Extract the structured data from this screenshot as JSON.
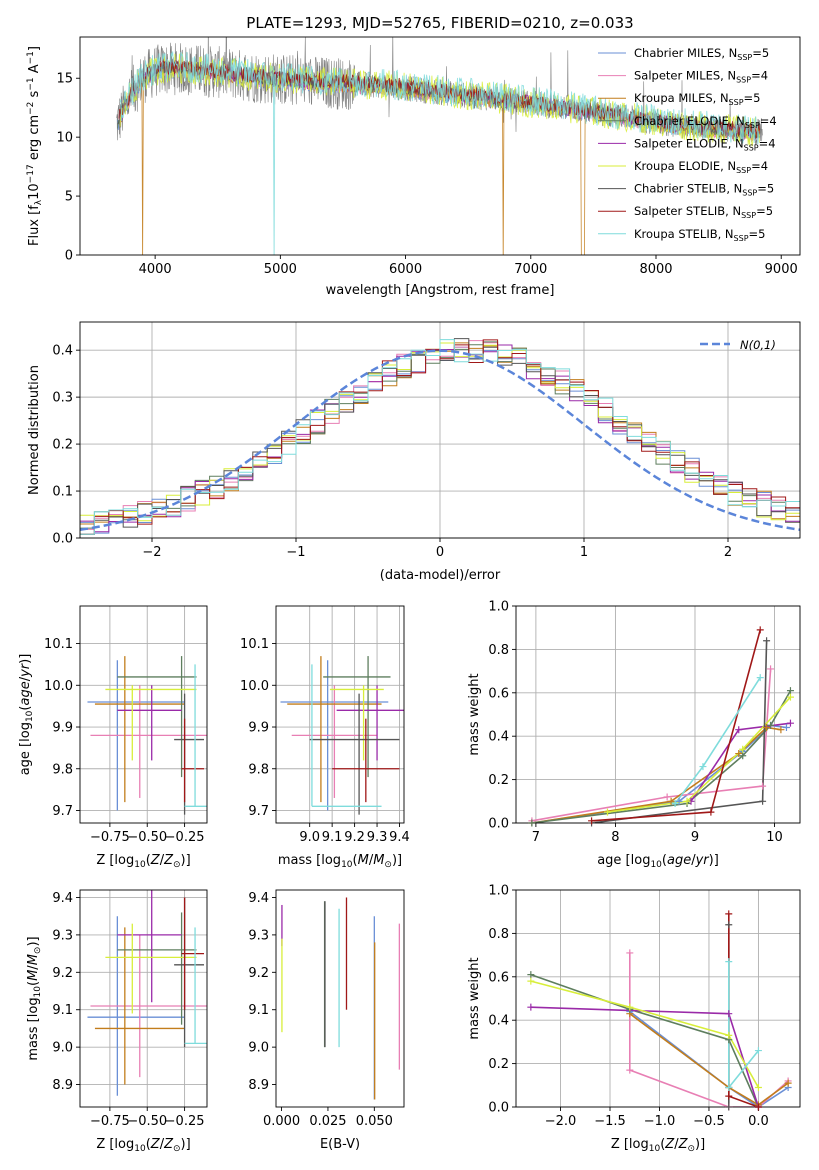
{
  "chart_data": [
    {
      "id": "spectrum",
      "type": "line",
      "title": "PLATE=1293, MJD=52765, FIBERID=0210, z=0.033",
      "xlabel": "wavelength [Angstrom, rest frame]",
      "ylabel": "Flux [f_λ10^-17 erg cm^-2 s^-1 A^-1]",
      "xlim": [
        3400,
        9150
      ],
      "ylim": [
        0,
        18.5
      ],
      "xticks": [
        4000,
        5000,
        6000,
        7000,
        8000,
        9000
      ],
      "yticks": [
        0,
        5,
        10,
        15
      ],
      "grid": false,
      "legend_position": "top-right",
      "data_range": [
        3690,
        8850
      ],
      "continuum": {
        "x": [
          3690,
          3800,
          3900,
          4000,
          4100,
          4200,
          4400,
          4600,
          4800,
          5000,
          5400,
          5800,
          6200,
          6600,
          7000,
          7400,
          7800,
          8200,
          8600,
          8850
        ],
        "y": [
          11.0,
          13.5,
          15.0,
          15.6,
          15.8,
          15.8,
          15.6,
          15.4,
          15.1,
          14.9,
          14.6,
          14.4,
          13.9,
          13.4,
          12.9,
          12.3,
          11.6,
          11.0,
          10.6,
          10.4
        ]
      },
      "series": [
        {
          "name": "Chabrier MILES, N_SSP=5",
          "color": "#6a8fd6"
        },
        {
          "name": "Salpeter MILES, N_SSP=4",
          "color": "#e87fb4"
        },
        {
          "name": "Kroupa MILES, N_SSP=5",
          "color": "#c27d1c"
        },
        {
          "name": "Chabrier ELODIE, N_SSP=4",
          "color": "#5e7e5e"
        },
        {
          "name": "Salpeter ELODIE, N_SSP=4",
          "color": "#9a2aa8"
        },
        {
          "name": "Kroupa ELODIE, N_SSP=4",
          "color": "#d8ee3a"
        },
        {
          "name": "Chabrier STELIB, N_SSP=5",
          "color": "#555555"
        },
        {
          "name": "Salpeter STELIB, N_SSP=5",
          "color": "#a01818"
        },
        {
          "name": "Kroupa STELIB, N_SSP=5",
          "color": "#7fdcdc"
        }
      ],
      "legend": [
        {
          "model": "Chabrier MILES, N",
          "sub": "SSP",
          "n": "=5",
          "color": "#6a8fd6"
        },
        {
          "model": "Salpeter MILES, N",
          "sub": "SSP",
          "n": "=4",
          "color": "#e87fb4"
        },
        {
          "model": "Kroupa MILES, N",
          "sub": "SSP",
          "n": "=5",
          "color": "#c27d1c"
        },
        {
          "model": "Chabrier ELODIE, N",
          "sub": "SSP",
          "n": "=4",
          "color": "#5e7e5e"
        },
        {
          "model": "Salpeter ELODIE, N",
          "sub": "SSP",
          "n": "=4",
          "color": "#9a2aa8"
        },
        {
          "model": "Kroupa ELODIE, N",
          "sub": "SSP",
          "n": "=4",
          "color": "#d8ee3a"
        },
        {
          "model": "Chabrier STELIB, N",
          "sub": "SSP",
          "n": "=5",
          "color": "#555555"
        },
        {
          "model": "Salpeter STELIB, N",
          "sub": "SSP",
          "n": "=5",
          "color": "#a01818"
        },
        {
          "model": "Kroupa STELIB, N",
          "sub": "SSP",
          "n": "=5",
          "color": "#7fdcdc"
        }
      ]
    },
    {
      "id": "residuals",
      "type": "histogram",
      "xlabel": "(data-model)/error",
      "ylabel": "Normed distribution",
      "xlim": [
        -2.5,
        2.5
      ],
      "ylim": [
        0,
        0.46
      ],
      "xticks": [
        -2,
        -1,
        0,
        1,
        2
      ],
      "yticks": [
        0.0,
        0.1,
        0.2,
        0.3,
        0.4
      ],
      "grid": true,
      "legend_position": "top-right",
      "reference": {
        "name": "N(0,1)",
        "mean": 0,
        "sigma": 1,
        "color": "#5b85d9"
      },
      "bin_width": 0.1,
      "series_colors": [
        "#6a8fd6",
        "#e87fb4",
        "#c27d1c",
        "#5e7e5e",
        "#9a2aa8",
        "#d8ee3a",
        "#555555",
        "#a01818",
        "#7fdcdc"
      ]
    },
    {
      "id": "age-vs-Z",
      "type": "errorbar",
      "xlabel": "Z [log10(Z/Z⊙)]",
      "ylabel": "age  [log10(age/yr)]",
      "xlim": [
        -0.95,
        -0.1
      ],
      "ylim": [
        9.67,
        10.19
      ],
      "xticks": [
        -0.75,
        -0.5,
        -0.25
      ],
      "xtick_labels": [
        "−0.75",
        "−0.50",
        "−0.25"
      ],
      "yticks": [
        9.7,
        9.8,
        9.9,
        10.0,
        10.1
      ],
      "grid": true,
      "points": [
        {
          "color": "#6a8fd6",
          "x": [
            -0.9,
            -0.25,
            -0.7
          ],
          "y": [
            9.7,
            10.06,
            9.96
          ]
        },
        {
          "color": "#e87fb4",
          "x": [
            -0.88,
            -0.1,
            -0.55
          ],
          "y": [
            9.73,
            10.0,
            9.88
          ]
        },
        {
          "color": "#c27d1c",
          "x": [
            -0.85,
            -0.25,
            -0.65
          ],
          "y": [
            9.72,
            10.07,
            9.955
          ]
        },
        {
          "color": "#5e7e5e",
          "x": [
            -0.7,
            -0.17,
            -0.27
          ],
          "y": [
            9.78,
            10.07,
            10.02
          ]
        },
        {
          "color": "#9a2aa8",
          "x": [
            -0.7,
            -0.27,
            -0.47
          ],
          "y": [
            9.82,
            10.0,
            9.94
          ]
        },
        {
          "color": "#d8ee3a",
          "x": [
            -0.78,
            -0.17,
            -0.6
          ],
          "y": [
            9.82,
            10.0,
            9.99
          ]
        },
        {
          "color": "#555555",
          "x": [
            -0.32,
            -0.12,
            -0.25
          ],
          "y": [
            9.69,
            9.98,
            9.87
          ]
        },
        {
          "color": "#a01818",
          "x": [
            -0.27,
            -0.12,
            -0.25
          ],
          "y": [
            9.72,
            9.92,
            9.8
          ]
        },
        {
          "color": "#7fdcdc",
          "x": [
            -0.25,
            -0.1,
            -0.18
          ],
          "y": [
            9.71,
            10.05,
            9.71
          ]
        }
      ]
    },
    {
      "id": "age-vs-mass",
      "type": "errorbar",
      "xlabel": "mass [log10(M/M⊙)]",
      "ylabel": "",
      "xlim": [
        8.85,
        9.42
      ],
      "ylim": [
        9.67,
        10.19
      ],
      "xticks": [
        9.0,
        9.1,
        9.2,
        9.3,
        9.4
      ],
      "yticks": [
        9.7,
        9.8,
        9.9,
        10.0,
        10.1
      ],
      "grid": true,
      "points": [
        {
          "color": "#6a8fd6",
          "x": [
            8.87,
            9.35,
            9.08
          ],
          "y": [
            9.7,
            10.06,
            9.96
          ]
        },
        {
          "color": "#e87fb4",
          "x": [
            8.92,
            9.3,
            9.11
          ],
          "y": [
            9.73,
            10.0,
            9.88
          ]
        },
        {
          "color": "#c27d1c",
          "x": [
            8.9,
            9.32,
            9.05
          ],
          "y": [
            9.72,
            10.07,
            9.955
          ]
        },
        {
          "color": "#5e7e5e",
          "x": [
            9.06,
            9.36,
            9.26
          ],
          "y": [
            9.78,
            10.07,
            10.02
          ]
        },
        {
          "color": "#9a2aa8",
          "x": [
            9.12,
            9.42,
            9.3
          ],
          "y": [
            9.82,
            10.0,
            9.94
          ]
        },
        {
          "color": "#d8ee3a",
          "x": [
            9.09,
            9.33,
            9.24
          ],
          "y": [
            9.82,
            10.0,
            9.99
          ]
        },
        {
          "color": "#555555",
          "x": [
            9.0,
            9.4,
            9.22
          ],
          "y": [
            9.69,
            9.98,
            9.87
          ]
        },
        {
          "color": "#a01818",
          "x": [
            9.1,
            9.4,
            9.25
          ],
          "y": [
            9.72,
            9.92,
            9.8
          ]
        },
        {
          "color": "#7fdcdc",
          "x": [
            9.01,
            9.32,
            9.01
          ],
          "y": [
            9.71,
            10.05,
            9.71
          ]
        }
      ]
    },
    {
      "id": "massweight-vs-age",
      "type": "line",
      "xlabel": "age  [log10(age/yr)]",
      "ylabel": "mass weight",
      "xlim": [
        6.75,
        10.32
      ],
      "ylim": [
        0,
        1.0
      ],
      "xticks": [
        7,
        8,
        9,
        10
      ],
      "yticks": [
        0.0,
        0.2,
        0.4,
        0.6,
        0.8,
        1.0
      ],
      "grid": true,
      "series": [
        {
          "color": "#6a8fd6",
          "x": [
            6.95,
            8.8,
            9.6,
            9.95,
            10.15
          ],
          "y": [
            0.0,
            0.1,
            0.33,
            0.45,
            0.44
          ]
        },
        {
          "color": "#e87fb4",
          "x": [
            6.95,
            8.65,
            9.85,
            9.95
          ],
          "y": [
            0.01,
            0.12,
            0.17,
            0.71
          ]
        },
        {
          "color": "#c27d1c",
          "x": [
            6.95,
            8.7,
            9.55,
            9.9,
            10.08
          ],
          "y": [
            0.0,
            0.1,
            0.32,
            0.44,
            0.43
          ]
        },
        {
          "color": "#5e7e5e",
          "x": [
            6.95,
            8.9,
            9.6,
            9.95,
            10.2
          ],
          "y": [
            0.0,
            0.09,
            0.31,
            0.45,
            0.61
          ]
        },
        {
          "color": "#9a2aa8",
          "x": [
            8.95,
            9.55,
            10.2
          ],
          "y": [
            0.1,
            0.43,
            0.46
          ]
        },
        {
          "color": "#d8ee3a",
          "x": [
            7.9,
            8.9,
            9.6,
            10.2
          ],
          "y": [
            0.05,
            0.1,
            0.34,
            0.58
          ]
        },
        {
          "color": "#555555",
          "x": [
            7.7,
            9.85,
            9.9
          ],
          "y": [
            0.0,
            0.1,
            0.84
          ]
        },
        {
          "color": "#a01818",
          "x": [
            7.7,
            9.2,
            9.82
          ],
          "y": [
            0.01,
            0.05,
            0.89
          ]
        },
        {
          "color": "#7fdcdc",
          "x": [
            8.75,
            9.1,
            9.82
          ],
          "y": [
            0.09,
            0.26,
            0.67
          ]
        }
      ]
    },
    {
      "id": "mass-vs-Z",
      "type": "errorbar",
      "xlabel": "Z [log10(Z/Z⊙)]",
      "ylabel": "mass [log10(M/M⊙)]",
      "xlim": [
        -0.95,
        -0.1
      ],
      "ylim": [
        8.84,
        9.42
      ],
      "xticks": [
        -0.75,
        -0.5,
        -0.25
      ],
      "xtick_labels": [
        "−0.75",
        "−0.50",
        "−0.25"
      ],
      "yticks": [
        8.9,
        9.0,
        9.1,
        9.2,
        9.3,
        9.4
      ],
      "grid": true,
      "points": [
        {
          "color": "#6a8fd6",
          "x": [
            -0.9,
            -0.25,
            -0.7
          ],
          "y": [
            8.87,
            9.35,
            9.08
          ]
        },
        {
          "color": "#e87fb4",
          "x": [
            -0.88,
            -0.1,
            -0.55
          ],
          "y": [
            8.92,
            9.3,
            9.11
          ]
        },
        {
          "color": "#c27d1c",
          "x": [
            -0.85,
            -0.25,
            -0.65
          ],
          "y": [
            8.9,
            9.32,
            9.05
          ]
        },
        {
          "color": "#5e7e5e",
          "x": [
            -0.7,
            -0.17,
            -0.27
          ],
          "y": [
            9.06,
            9.36,
            9.26
          ]
        },
        {
          "color": "#9a2aa8",
          "x": [
            -0.7,
            -0.27,
            -0.47
          ],
          "y": [
            9.12,
            9.42,
            9.3
          ]
        },
        {
          "color": "#d8ee3a",
          "x": [
            -0.78,
            -0.17,
            -0.6
          ],
          "y": [
            9.09,
            9.33,
            9.24
          ]
        },
        {
          "color": "#555555",
          "x": [
            -0.32,
            -0.12,
            -0.25
          ],
          "y": [
            9.0,
            9.4,
            9.22
          ]
        },
        {
          "color": "#a01818",
          "x": [
            -0.27,
            -0.12,
            -0.25
          ],
          "y": [
            9.1,
            9.4,
            9.25
          ]
        },
        {
          "color": "#7fdcdc",
          "x": [
            -0.25,
            -0.1,
            -0.18
          ],
          "y": [
            9.01,
            9.32,
            9.01
          ]
        }
      ]
    },
    {
      "id": "mass-vs-ebv",
      "type": "errorbar",
      "xlabel": "E(B-V)",
      "ylabel": "",
      "xlim": [
        -0.003,
        0.066
      ],
      "ylim": [
        8.84,
        9.42
      ],
      "xticks": [
        0.0,
        0.025,
        0.05
      ],
      "xtick_labels": [
        "0.000",
        "0.025",
        "0.050"
      ],
      "yticks": [
        8.9,
        9.0,
        9.1,
        9.2,
        9.3,
        9.4
      ],
      "grid": false,
      "vlines": [
        {
          "color": "#6a8fd6",
          "x": 0.05,
          "y": [
            8.86,
            9.35
          ]
        },
        {
          "color": "#c27d1c",
          "x": 0.0502,
          "y": [
            8.86,
            9.28
          ]
        },
        {
          "color": "#e87fb4",
          "x": 0.0635,
          "y": [
            8.94,
            9.33
          ]
        },
        {
          "color": "#5e7e5e",
          "x": 0.0232,
          "y": [
            9.0,
            9.39
          ]
        },
        {
          "color": "#555555",
          "x": 0.0234,
          "y": [
            9.0,
            9.39
          ]
        },
        {
          "color": "#a01818",
          "x": 0.035,
          "y": [
            9.1,
            9.4
          ]
        },
        {
          "color": "#7fdcdc",
          "x": 0.031,
          "y": [
            9.0,
            9.37
          ]
        },
        {
          "color": "#9a2aa8",
          "x": 0.0002,
          "y": [
            9.27,
            9.38
          ]
        },
        {
          "color": "#d8ee3a",
          "x": 0.0002,
          "y": [
            9.04,
            9.29
          ]
        }
      ]
    },
    {
      "id": "massweight-vs-Z",
      "type": "line",
      "xlabel": "Z [log10(Z/Z⊙)]",
      "ylabel": "mass weight",
      "xlim": [
        -2.45,
        0.42
      ],
      "ylim": [
        0,
        1.0
      ],
      "xticks": [
        -2.0,
        -1.5,
        -1.0,
        -0.5,
        0.0
      ],
      "xtick_labels": [
        "−2.0",
        "−1.5",
        "−1.0",
        "−0.5",
        "0.0"
      ],
      "yticks": [
        0.0,
        0.2,
        0.4,
        0.6,
        0.8,
        1.0
      ],
      "grid": true,
      "series": [
        {
          "color": "#6a8fd6",
          "x": [
            -1.3,
            -0.3,
            0.0,
            0.3
          ],
          "y": [
            0.44,
            0.09,
            0.0,
            0.09
          ]
        },
        {
          "color": "#e87fb4",
          "x": [
            -1.3,
            -1.3,
            -0.3,
            0.0,
            0.3
          ],
          "y": [
            0.71,
            0.17,
            0.0,
            0.0,
            0.12
          ]
        },
        {
          "color": "#c27d1c",
          "x": [
            -1.3,
            -0.3,
            0.0,
            0.3
          ],
          "y": [
            0.43,
            0.09,
            0.01,
            0.11
          ]
        },
        {
          "color": "#5e7e5e",
          "x": [
            -2.3,
            -1.3,
            -0.3,
            0.0
          ],
          "y": [
            0.61,
            0.45,
            0.31,
            0.0
          ]
        },
        {
          "color": "#9a2aa8",
          "x": [
            -2.3,
            -0.3,
            0.0
          ],
          "y": [
            0.46,
            0.43,
            0.0
          ]
        },
        {
          "color": "#d8ee3a",
          "x": [
            -2.3,
            -1.3,
            -0.3,
            0.0
          ],
          "y": [
            0.58,
            0.46,
            0.33,
            0.09
          ]
        },
        {
          "color": "#555555",
          "x": [
            -0.3,
            -0.3
          ],
          "y": [
            0.84,
            0.0
          ]
        },
        {
          "color": "#a01818",
          "x": [
            -0.3,
            -0.3,
            0.0
          ],
          "y": [
            0.89,
            0.05,
            0.0
          ]
        },
        {
          "color": "#7fdcdc",
          "x": [
            -0.3,
            -0.3,
            0.0
          ],
          "y": [
            0.67,
            0.09,
            0.26
          ]
        }
      ]
    }
  ]
}
